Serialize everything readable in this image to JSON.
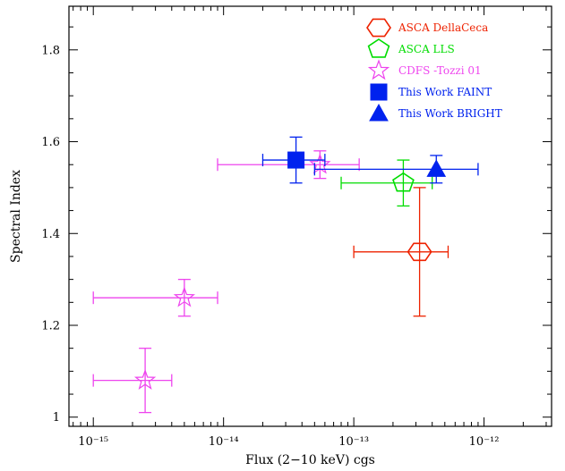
{
  "chart_data": {
    "type": "scatter",
    "xlabel": "Flux (2−10 keV) cgs",
    "ylabel": "Spectral Index",
    "xscale": "log",
    "xlim": [
      6.5e-16,
      3.3e-12
    ],
    "ylim": [
      0.98,
      1.895
    ],
    "x_ticks": [
      {
        "value": 1e-15,
        "label": "10⁻¹⁵"
      },
      {
        "value": 1e-14,
        "label": "10⁻¹⁴"
      },
      {
        "value": 1e-13,
        "label": "10⁻¹³"
      },
      {
        "value": 1e-12,
        "label": "10⁻¹²"
      }
    ],
    "y_ticks": [
      {
        "value": 1.0,
        "label": "1"
      },
      {
        "value": 1.2,
        "label": "1.2"
      },
      {
        "value": 1.4,
        "label": "1.4"
      },
      {
        "value": 1.6,
        "label": "1.6"
      },
      {
        "value": 1.8,
        "label": "1.8"
      }
    ],
    "grid": false,
    "legend_position": "top-right",
    "series": [
      {
        "name": "ASCA DellaCeca",
        "color": "#ee2200",
        "marker": "hexagon",
        "points": [
          {
            "x": 3.2e-13,
            "y": 1.36,
            "xerr": [
              1e-13,
              5.3e-13
            ],
            "yerr": [
              1.22,
              1.5
            ]
          }
        ]
      },
      {
        "name": "ASCA LLS",
        "color": "#00dd00",
        "marker": "pentagon",
        "points": [
          {
            "x": 2.4e-13,
            "y": 1.51,
            "xerr": [
              8e-14,
              4e-13
            ],
            "yerr": [
              1.46,
              1.56
            ]
          }
        ]
      },
      {
        "name": "CDFS -Tozzi 01",
        "color": "#ee44ee",
        "marker": "star",
        "points": [
          {
            "x": 2.5e-15,
            "y": 1.08,
            "xerr": [
              1e-15,
              4e-15
            ],
            "yerr": [
              1.01,
              1.15
            ]
          },
          {
            "x": 5e-15,
            "y": 1.26,
            "xerr": [
              1e-15,
              9e-15
            ],
            "yerr": [
              1.22,
              1.3
            ]
          },
          {
            "x": 5.5e-14,
            "y": 1.55,
            "xerr": [
              9e-15,
              1.1e-13
            ],
            "yerr": [
              1.52,
              1.58
            ]
          }
        ]
      },
      {
        "name": "This Work FAINT",
        "color": "#0022ee",
        "marker": "square",
        "points": [
          {
            "x": 3.6e-14,
            "y": 1.56,
            "xerr": [
              2e-14,
              6e-14
            ],
            "yerr": [
              1.51,
              1.61
            ]
          }
        ]
      },
      {
        "name": "This Work BRIGHT",
        "color": "#0022ee",
        "marker": "triangle",
        "points": [
          {
            "x": 4.3e-13,
            "y": 1.54,
            "xerr": [
              5e-14,
              9e-13
            ],
            "yerr": [
              1.51,
              1.57
            ]
          }
        ]
      }
    ]
  }
}
